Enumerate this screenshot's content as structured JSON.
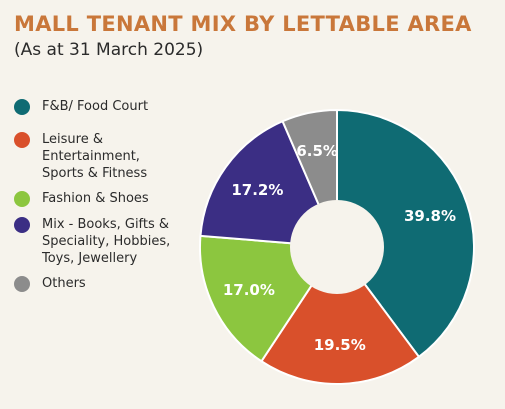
{
  "colors": {
    "title": "#c9773a",
    "background": "#f6f3ec"
  },
  "chart_data": {
    "type": "pie",
    "variant": "donut",
    "title": "MALL TENANT MIX BY LETTABLE AREA",
    "subtitle": "(As at 31 March 2025)",
    "legend_position": "left",
    "slices": [
      {
        "label": "F&B/ Food Court",
        "value": 39.8,
        "display": "39.8%",
        "color": "#0f6b73"
      },
      {
        "label": "Leisure & Entertainment, Sports & Fitness",
        "value": 19.5,
        "display": "19.5%",
        "color": "#d9502b"
      },
      {
        "label": "Fashion & Shoes",
        "value": 17.0,
        "display": "17.0%",
        "color": "#8cc63f"
      },
      {
        "label": "Mix - Books, Gifts & Speciality, Hobbies, Toys, Jewellery",
        "value": 17.2,
        "display": "17.2%",
        "color": "#3b2e84"
      },
      {
        "label": "Others",
        "value": 6.5,
        "display": "6.5%",
        "color": "#8c8c8c"
      }
    ]
  }
}
